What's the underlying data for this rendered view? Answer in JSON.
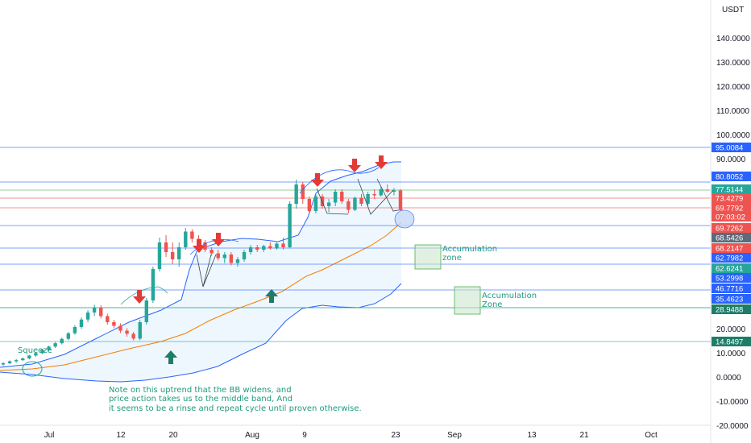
{
  "chart_data": {
    "type": "candlestick",
    "currency_label": "USDT",
    "y_axis_ticks": [
      "140.0000",
      "130.0000",
      "120.0000",
      "110.0000",
      "100.0000",
      "90.0000",
      "20.0000",
      "10.0000",
      "0.0000",
      "-10.0000",
      "-20.0000"
    ],
    "x_axis_ticks": [
      "Jul",
      "12",
      "20",
      "Aug",
      "9",
      "23",
      "Sep",
      "13",
      "21",
      "Oct"
    ],
    "price_levels": [
      {
        "value": "95.0084",
        "color": "#2962ff"
      },
      {
        "value": "80.8052",
        "color": "#2962ff"
      },
      {
        "value": "77.5144",
        "color": "#26a69a"
      },
      {
        "value": "73.4279",
        "color": "#ef5350"
      },
      {
        "value": "69.7792",
        "color": "#ef5350"
      },
      {
        "value": "07:03:02",
        "color": "#ef5350"
      },
      {
        "value": "69.7262",
        "color": "#ef5350"
      },
      {
        "value": "68.5426",
        "color": "#5d6a7a"
      },
      {
        "value": "68.2147",
        "color": "#ef5350"
      },
      {
        "value": "62.7982",
        "color": "#2962ff"
      },
      {
        "value": "62.6241",
        "color": "#26a69a"
      },
      {
        "value": "53.2998",
        "color": "#2962ff"
      },
      {
        "value": "46.7716",
        "color": "#2962ff"
      },
      {
        "value": "35.4623",
        "color": "#2962ff"
      },
      {
        "value": "28.9488",
        "color": "#1e7d6a"
      },
      {
        "value": "14.8497",
        "color": "#1e7d6a"
      }
    ],
    "candles": [
      {
        "o": 5.5,
        "h": 6.5,
        "l": 4.9,
        "c": 6.0
      },
      {
        "o": 6.0,
        "h": 7.2,
        "l": 5.6,
        "c": 6.8
      },
      {
        "o": 6.8,
        "h": 7.8,
        "l": 6.2,
        "c": 7.3
      },
      {
        "o": 7.3,
        "h": 8.4,
        "l": 6.9,
        "c": 8.0
      },
      {
        "o": 8.0,
        "h": 9.5,
        "l": 7.6,
        "c": 9.2
      },
      {
        "o": 9.2,
        "h": 10.6,
        "l": 8.7,
        "c": 10.2
      },
      {
        "o": 10.2,
        "h": 12.0,
        "l": 9.8,
        "c": 11.6
      },
      {
        "o": 11.6,
        "h": 13.3,
        "l": 11.0,
        "c": 12.9
      },
      {
        "o": 12.9,
        "h": 14.8,
        "l": 12.3,
        "c": 14.3
      },
      {
        "o": 14.3,
        "h": 16.6,
        "l": 13.8,
        "c": 16.1
      },
      {
        "o": 16.1,
        "h": 19.0,
        "l": 15.5,
        "c": 18.4
      },
      {
        "o": 18.4,
        "h": 21.8,
        "l": 17.8,
        "c": 21.0
      },
      {
        "o": 21.0,
        "h": 25.0,
        "l": 20.2,
        "c": 24.1
      },
      {
        "o": 24.1,
        "h": 28.0,
        "l": 23.0,
        "c": 27.0
      },
      {
        "o": 27.0,
        "h": 30.2,
        "l": 25.5,
        "c": 29.0
      },
      {
        "o": 29.0,
        "h": 30.0,
        "l": 24.5,
        "c": 25.5
      },
      {
        "o": 25.5,
        "h": 26.5,
        "l": 22.0,
        "c": 23.0
      },
      {
        "o": 23.0,
        "h": 24.0,
        "l": 20.5,
        "c": 21.5
      },
      {
        "o": 21.5,
        "h": 22.5,
        "l": 18.5,
        "c": 19.5
      },
      {
        "o": 19.5,
        "h": 20.5,
        "l": 17.0,
        "c": 18.2
      },
      {
        "o": 18.2,
        "h": 19.0,
        "l": 15.5,
        "c": 16.2
      },
      {
        "o": 16.2,
        "h": 24.0,
        "l": 15.5,
        "c": 23.0
      },
      {
        "o": 23.0,
        "h": 33.0,
        "l": 22.0,
        "c": 32.0
      },
      {
        "o": 32.0,
        "h": 46.0,
        "l": 31.0,
        "c": 45.0
      },
      {
        "o": 45.0,
        "h": 58.0,
        "l": 44.0,
        "c": 56.0
      },
      {
        "o": 56.0,
        "h": 59.0,
        "l": 50.0,
        "c": 52.0
      },
      {
        "o": 52.0,
        "h": 56.0,
        "l": 47.0,
        "c": 49.0
      },
      {
        "o": 49.0,
        "h": 56.0,
        "l": 46.0,
        "c": 54.0
      },
      {
        "o": 54.0,
        "h": 62.0,
        "l": 53.0,
        "c": 60.5
      },
      {
        "o": 60.5,
        "h": 61.5,
        "l": 56.0,
        "c": 57.5
      },
      {
        "o": 57.5,
        "h": 59.0,
        "l": 55.0,
        "c": 56.0
      },
      {
        "o": 56.0,
        "h": 57.0,
        "l": 52.0,
        "c": 53.0
      },
      {
        "o": 53.0,
        "h": 54.0,
        "l": 50.5,
        "c": 51.5
      },
      {
        "o": 51.5,
        "h": 53.0,
        "l": 48.5,
        "c": 49.5
      },
      {
        "o": 49.5,
        "h": 52.0,
        "l": 47.5,
        "c": 51.0
      },
      {
        "o": 51.0,
        "h": 52.0,
        "l": 46.5,
        "c": 47.5
      },
      {
        "o": 47.5,
        "h": 50.0,
        "l": 46.0,
        "c": 49.0
      },
      {
        "o": 49.0,
        "h": 53.0,
        "l": 48.0,
        "c": 52.0
      },
      {
        "o": 52.0,
        "h": 55.0,
        "l": 51.0,
        "c": 54.0
      },
      {
        "o": 54.0,
        "h": 55.0,
        "l": 52.0,
        "c": 53.0
      },
      {
        "o": 53.0,
        "h": 55.0,
        "l": 52.0,
        "c": 54.5
      },
      {
        "o": 54.5,
        "h": 56.0,
        "l": 53.0,
        "c": 53.5
      },
      {
        "o": 53.5,
        "h": 56.0,
        "l": 53.0,
        "c": 55.5
      },
      {
        "o": 55.5,
        "h": 58.0,
        "l": 53.0,
        "c": 54.0
      },
      {
        "o": 54.0,
        "h": 73.0,
        "l": 53.5,
        "c": 72.0
      },
      {
        "o": 72.0,
        "h": 82.0,
        "l": 70.0,
        "c": 80.0
      },
      {
        "o": 80.0,
        "h": 81.0,
        "l": 72.0,
        "c": 74.0
      },
      {
        "o": 74.0,
        "h": 75.0,
        "l": 68.0,
        "c": 69.0
      },
      {
        "o": 69.0,
        "h": 76.0,
        "l": 68.0,
        "c": 75.0
      },
      {
        "o": 75.0,
        "h": 76.0,
        "l": 70.0,
        "c": 71.0
      },
      {
        "o": 71.0,
        "h": 74.0,
        "l": 68.5,
        "c": 72.5
      },
      {
        "o": 72.5,
        "h": 78.0,
        "l": 71.0,
        "c": 77.0
      },
      {
        "o": 77.0,
        "h": 78.0,
        "l": 72.0,
        "c": 73.0
      },
      {
        "o": 73.0,
        "h": 74.0,
        "l": 68.0,
        "c": 69.5
      },
      {
        "o": 69.5,
        "h": 75.0,
        "l": 69.0,
        "c": 74.5
      },
      {
        "o": 74.5,
        "h": 76.0,
        "l": 71.0,
        "c": 72.0
      },
      {
        "o": 72.0,
        "h": 77.0,
        "l": 71.0,
        "c": 76.0
      },
      {
        "o": 76.0,
        "h": 78.0,
        "l": 74.0,
        "c": 75.5
      },
      {
        "o": 75.5,
        "h": 79.0,
        "l": 75.0,
        "c": 78.0
      },
      {
        "o": 78.0,
        "h": 80.0,
        "l": 76.5,
        "c": 77.0
      },
      {
        "o": 77.0,
        "h": 78.5,
        "l": 75.5,
        "c": 77.5
      },
      {
        "o": 77.5,
        "h": 78.0,
        "l": 69.0,
        "c": 69.8
      }
    ],
    "annotations": [
      {
        "text": "Squeeze"
      },
      {
        "text": "Accumulation"
      },
      {
        "text": "zone"
      },
      {
        "text": "Accumulation"
      },
      {
        "text": "Zone"
      },
      {
        "text": "Note on this uptrend that the BB widens, and"
      },
      {
        "text": "price action takes us to the middle band, And"
      },
      {
        "text": " it seems to be a rinse and repeat cycle until proven otherwise."
      }
    ],
    "colors": {
      "up": "#26a69a",
      "down": "#ef5350",
      "band": "#2962ff",
      "band_fill": "#e3f2fd",
      "middle_band": "#f57c00",
      "arrow_down": "#e53935",
      "arrow_up": "#1e7d6a",
      "note": "#1e9b7e"
    }
  }
}
